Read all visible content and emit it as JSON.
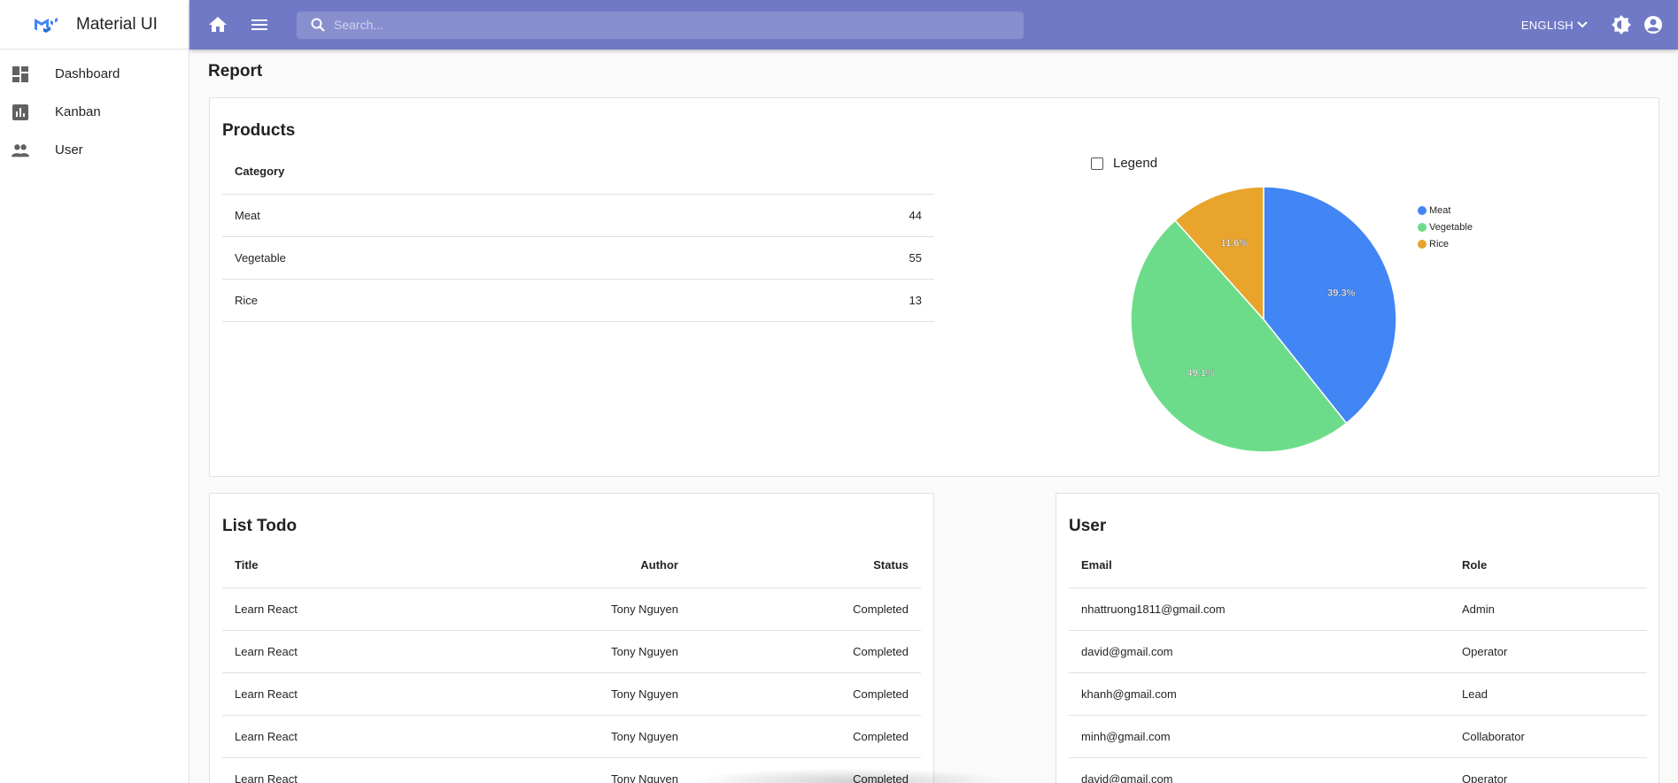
{
  "app": {
    "name": "Material UI"
  },
  "sidebar": {
    "items": [
      {
        "label": "Dashboard",
        "icon": "dashboard-icon"
      },
      {
        "label": "Kanban",
        "icon": "assessment-icon"
      },
      {
        "label": "User",
        "icon": "people-icon"
      }
    ]
  },
  "topbar": {
    "search_placeholder": "Search...",
    "language": "ENGLISH"
  },
  "page": {
    "title": "Report"
  },
  "products": {
    "title": "Products",
    "header": "Category",
    "rows": [
      {
        "name": "Meat",
        "value": "44"
      },
      {
        "name": "Vegetable",
        "value": "55"
      },
      {
        "name": "Rice",
        "value": "13"
      }
    ],
    "legend_toggle": "Legend"
  },
  "chart_data": {
    "type": "pie",
    "categories": [
      "Meat",
      "Vegetable",
      "Rice"
    ],
    "values": [
      44,
      55,
      13
    ],
    "labels": [
      "39.3%",
      "49.1%",
      "11.6%"
    ],
    "colors": [
      "#4285f4",
      "#6ddc8a",
      "#e8a42b"
    ],
    "legend_position": "right"
  },
  "todo": {
    "title": "List Todo",
    "headers": [
      "Title",
      "Author",
      "Status"
    ],
    "rows": [
      [
        "Learn React",
        "Tony Nguyen",
        "Completed"
      ],
      [
        "Learn React",
        "Tony Nguyen",
        "Completed"
      ],
      [
        "Learn React",
        "Tony Nguyen",
        "Completed"
      ],
      [
        "Learn React",
        "Tony Nguyen",
        "Completed"
      ],
      [
        "Learn React",
        "Tony Nguyen",
        "Completed"
      ]
    ]
  },
  "users": {
    "title": "User",
    "headers": [
      "Email",
      "Role"
    ],
    "rows": [
      [
        "nhattruong1811@gmail.com",
        "Admin"
      ],
      [
        "david@gmail.com",
        "Operator"
      ],
      [
        "khanh@gmail.com",
        "Lead"
      ],
      [
        "minh@gmail.com",
        "Collaborator"
      ],
      [
        "david@gmail.com",
        "Operator"
      ]
    ]
  },
  "colors": {
    "appbar": "#7079c6",
    "logo": "#4285f4"
  }
}
